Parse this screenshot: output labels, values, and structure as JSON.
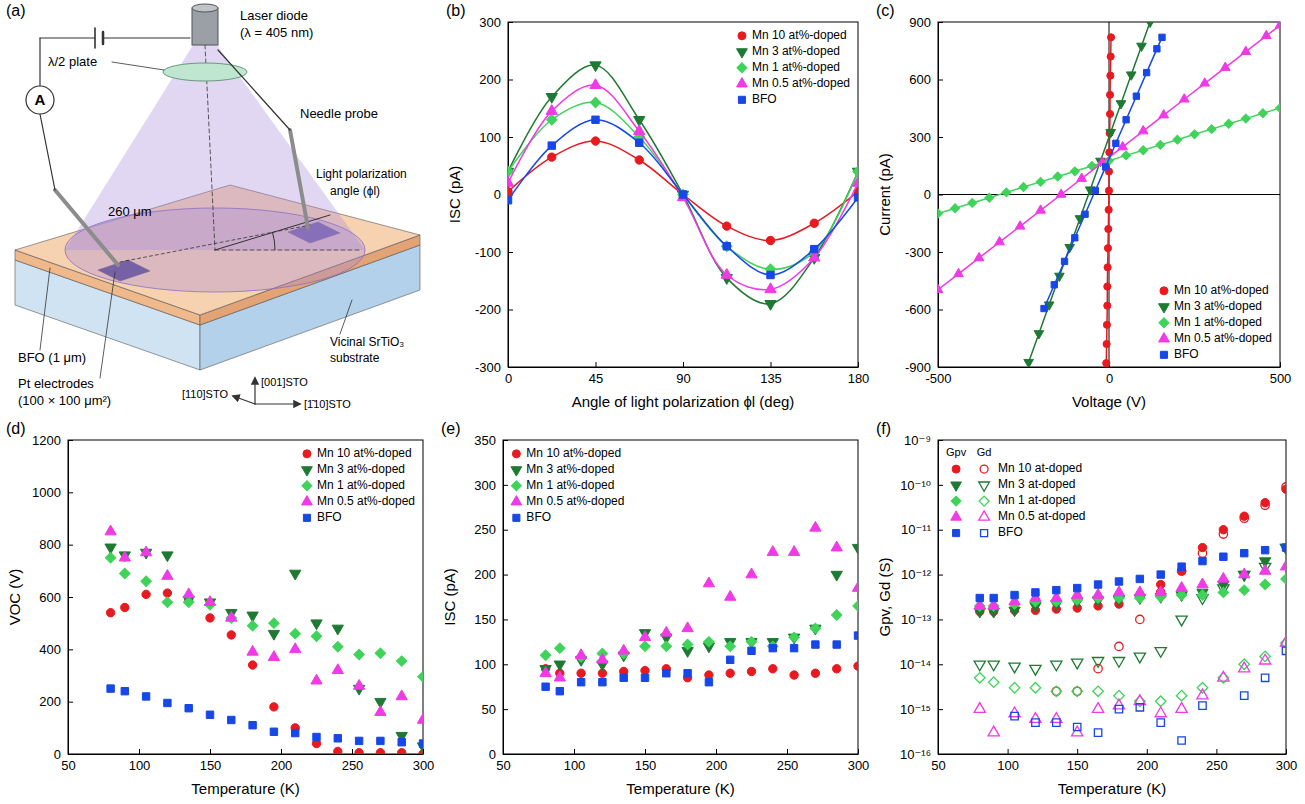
{
  "diagram": {
    "panel_label": "(a)",
    "labels": {
      "laser_diode": "Laser diode",
      "wavelength": "(λ = 405 nm)",
      "half_wave_plate": "λ/2 plate",
      "ammeter": "A",
      "needle_probe": "Needle probe",
      "distance": "260 μm",
      "polarization_1": "Light polarization",
      "polarization_2": "angle (ϕl)",
      "bfo": "BFO (1 μm)",
      "electrodes_1": "Pt electrodes",
      "electrodes_2": "(100 × 100 μm²)",
      "substrate_1": "Vicinal SrTiO₃",
      "substrate_2": "substrate",
      "axis_110": "[110]STO",
      "axis_001": "[001]STO",
      "axis_1bar10": "[1̄10]STO"
    }
  },
  "chart_data": [
    {
      "type": "line",
      "panel_label": "(b)",
      "x_label": "Angle of light polarization ϕl (deg)",
      "y_label": "ISC (pA)",
      "x": [
        0,
        22.5,
        45,
        67.5,
        90,
        112.5,
        135,
        157.5,
        180
      ],
      "xlim": [
        0,
        180
      ],
      "xticks": [
        0,
        45,
        90,
        135,
        180
      ],
      "ylim": [
        -300,
        300
      ],
      "yticks": [
        -300,
        -200,
        -100,
        0,
        100,
        200,
        300
      ],
      "legend": "upper right",
      "series": [
        {
          "name": "Mn 10 at%-doped",
          "color": "#e8191f",
          "marker": "circle",
          "line_style": "smooth",
          "values": [
            5,
            65,
            93,
            60,
            0,
            -55,
            -80,
            -50,
            5
          ]
        },
        {
          "name": "Mn 3 at%-doped",
          "color": "#1e7a32",
          "marker": "triangle-down",
          "line_style": "smooth",
          "values": [
            40,
            170,
            225,
            130,
            0,
            -145,
            -190,
            -110,
            40
          ]
        },
        {
          "name": "Mn 1 at%-doped",
          "color": "#3fd35a",
          "marker": "diamond",
          "line_style": "smooth",
          "values": [
            40,
            130,
            160,
            100,
            0,
            -90,
            -130,
            -100,
            40
          ]
        },
        {
          "name": "Mn 0.5 at%-doped",
          "color": "#f03ae6",
          "marker": "triangle-up",
          "line_style": "smooth",
          "values": [
            20,
            145,
            190,
            110,
            -5,
            -140,
            -165,
            -110,
            20
          ]
        },
        {
          "name": "BFO",
          "color": "#1747e6",
          "marker": "square",
          "line_style": "smooth",
          "values": [
            -10,
            85,
            130,
            90,
            0,
            -90,
            -140,
            -95,
            -5
          ]
        }
      ]
    },
    {
      "type": "line",
      "panel_label": "(c)",
      "x_label": "Voltage (V)",
      "y_label": "Current (pA)",
      "xlim": [
        -500,
        500
      ],
      "xticks": [
        -500,
        0,
        500
      ],
      "ylim": [
        -900,
        900
      ],
      "yticks": [
        -900,
        -600,
        -300,
        0,
        300,
        600,
        900
      ],
      "legend": "lower right",
      "series": [
        {
          "name": "Mn 10 at%-doped",
          "color": "#e8191f",
          "marker": "circle",
          "line_style": "solid",
          "x": [
            -8,
            -7,
            -6,
            -5,
            -5,
            -4,
            -3,
            -2,
            -1,
            0,
            0,
            1,
            2,
            3,
            3,
            4,
            5,
            6
          ],
          "values": [
            -880,
            -780,
            -680,
            -580,
            -480,
            -380,
            -280,
            -180,
            -80,
            20,
            120,
            220,
            320,
            420,
            520,
            620,
            720,
            820
          ]
        },
        {
          "name": "Mn 3 at%-doped",
          "color": "#1e7a32",
          "marker": "triangle-down",
          "line_style": "solid",
          "x": [
            -235,
            -205,
            -175,
            -145,
            -115,
            -85,
            -55,
            -25,
            5,
            35,
            65,
            95,
            120
          ],
          "values": [
            -875,
            -725,
            -575,
            -425,
            -275,
            -125,
            25,
            175,
            325,
            475,
            625,
            775,
            900
          ]
        },
        {
          "name": "Mn 1 at%-doped",
          "color": "#3fd35a",
          "marker": "diamond",
          "line_style": "solid",
          "x": [
            -500,
            -450,
            -400,
            -350,
            -300,
            -250,
            -200,
            -150,
            -100,
            -50,
            0,
            50,
            100,
            150,
            200,
            250,
            300,
            350,
            400,
            450,
            500
          ],
          "values": [
            -99,
            -72,
            -44,
            -17,
            11,
            39,
            66,
            94,
            121,
            149,
            176,
            204,
            231,
            259,
            286,
            314,
            341,
            369,
            396,
            424,
            451
          ]
        },
        {
          "name": "Mn 0.5 at%-doped",
          "color": "#f03ae6",
          "marker": "triangle-up",
          "line_style": "solid",
          "x": [
            -500,
            -440,
            -380,
            -320,
            -260,
            -200,
            -140,
            -80,
            -20,
            40,
            100,
            160,
            220,
            280,
            340,
            400,
            460,
            500
          ],
          "values": [
            -497,
            -414,
            -331,
            -248,
            -166,
            -83,
            0,
            83,
            166,
            248,
            331,
            414,
            497,
            580,
            662,
            745,
            828,
            883
          ]
        },
        {
          "name": "BFO",
          "color": "#1747e6",
          "marker": "square",
          "line_style": "solid",
          "x": [
            -190,
            -160,
            -130,
            -100,
            -70,
            -40,
            -10,
            20,
            50,
            80,
            110,
            140,
            155
          ],
          "values": [
            -595,
            -471,
            -349,
            -226,
            -103,
            21,
            144,
            267,
            390,
            513,
            636,
            760,
            820
          ]
        }
      ]
    },
    {
      "type": "scatter",
      "panel_label": "(d)",
      "x_label": "Temperature (K)",
      "y_label": "VOC (V)",
      "x": [
        80,
        90,
        105,
        120,
        135,
        150,
        165,
        180,
        195,
        210,
        225,
        240,
        255,
        270,
        285,
        300
      ],
      "xlim": [
        50,
        300
      ],
      "xticks": [
        50,
        100,
        150,
        200,
        250,
        300
      ],
      "ylim": [
        0,
        1200
      ],
      "yticks": [
        0,
        200,
        400,
        600,
        800,
        1000,
        1200
      ],
      "legend": "upper right",
      "series": [
        {
          "name": "Mn 10 at%-doped",
          "color": "#e8191f",
          "marker": "circle",
          "values": [
            540,
            560,
            610,
            615,
            590,
            520,
            455,
            340,
            180,
            100,
            40,
            10,
            5,
            5,
            5,
            0
          ]
        },
        {
          "name": "Mn 3 at%-doped",
          "color": "#1e7a32",
          "marker": "triangle-down",
          "values": [
            790,
            760,
            770,
            760,
            590,
            580,
            540,
            530,
            460,
            690,
            500,
            480,
            250,
            200,
            70,
            30
          ]
        },
        {
          "name": "Mn 1 at%-doped",
          "color": "#3fd35a",
          "marker": "diamond",
          "values": [
            750,
            690,
            660,
            580,
            580,
            570,
            520,
            490,
            500,
            460,
            450,
            410,
            380,
            385,
            355,
            295
          ]
        },
        {
          "name": "Mn 0.5 at%-doped",
          "color": "#f03ae6",
          "marker": "triangle-up",
          "values": [
            850,
            750,
            770,
            680,
            610,
            580,
            520,
            390,
            370,
            400,
            280,
            320,
            260,
            160,
            220,
            130
          ]
        },
        {
          "name": "BFO",
          "color": "#1747e6",
          "marker": "square",
          "values": [
            250,
            240,
            220,
            195,
            175,
            150,
            130,
            110,
            85,
            80,
            65,
            60,
            50,
            50,
            45,
            40
          ]
        }
      ]
    },
    {
      "type": "scatter",
      "panel_label": "(e)",
      "x_label": "Temperature (K)",
      "y_label": "ISC (pA)",
      "x": [
        80,
        90,
        105,
        120,
        135,
        150,
        165,
        180,
        195,
        210,
        225,
        240,
        255,
        270,
        285,
        300
      ],
      "xlim": [
        50,
        300
      ],
      "xticks": [
        50,
        100,
        150,
        200,
        250,
        300
      ],
      "ylim": [
        0,
        350
      ],
      "yticks": [
        0,
        50,
        100,
        150,
        200,
        250,
        300,
        350
      ],
      "legend": "upper left",
      "series": [
        {
          "name": "Mn 10 at%-doped",
          "color": "#e8191f",
          "marker": "circle",
          "values": [
            95,
            90,
            90,
            90,
            92,
            93,
            95,
            85,
            88,
            90,
            92,
            95,
            88,
            90,
            95,
            98
          ]
        },
        {
          "name": "Mn 3 at%-doped",
          "color": "#1e7a32",
          "marker": "triangle-down",
          "values": [
            95,
            100,
            105,
            100,
            110,
            135,
            130,
            115,
            120,
            125,
            125,
            125,
            130,
            140,
            200,
            230
          ]
        },
        {
          "name": "Mn 1 at%-doped",
          "color": "#3fd35a",
          "marker": "diamond",
          "values": [
            110,
            118,
            108,
            112,
            112,
            120,
            120,
            122,
            125,
            120,
            125,
            120,
            130,
            140,
            155,
            165
          ]
        },
        {
          "name": "Mn 0.5 at%-doped",
          "color": "#f03ae6",
          "marker": "triangle-up",
          "values": [
            90,
            85,
            110,
            105,
            115,
            130,
            135,
            140,
            190,
            175,
            200,
            225,
            225,
            252,
            230,
            185
          ]
        },
        {
          "name": "BFO",
          "color": "#1747e6",
          "marker": "square",
          "values": [
            75,
            70,
            80,
            80,
            85,
            85,
            90,
            90,
            80,
            105,
            115,
            118,
            118,
            122,
            122,
            132
          ]
        }
      ]
    },
    {
      "type": "scatter",
      "panel_label": "(f)",
      "x_label": "Temperature (K)",
      "y_label": "Gpv, Gd (S)",
      "x": [
        80,
        90,
        105,
        120,
        135,
        150,
        165,
        180,
        195,
        210,
        225,
        240,
        255,
        270,
        285,
        300
      ],
      "xlim": [
        50,
        300
      ],
      "xticks": [
        50,
        100,
        150,
        200,
        250,
        300
      ],
      "log": "y",
      "ylim": [
        1e-16,
        1e-09
      ],
      "yticks": [
        {
          "value": 1e-16,
          "label": "10⁻¹⁶"
        },
        {
          "value": 1e-15,
          "label": "10⁻¹⁵"
        },
        {
          "value": 1e-14,
          "label": "10⁻¹⁴"
        },
        {
          "value": 1e-13,
          "label": "10⁻¹³"
        },
        {
          "value": 1e-12,
          "label": "10⁻¹²"
        },
        {
          "value": 1e-11,
          "label": "10⁻¹¹"
        },
        {
          "value": 1e-10,
          "label": "10⁻¹⁰"
        },
        {
          "value": 1e-09,
          "label": "10⁻⁹"
        }
      ],
      "legend": "upper left",
      "legend_columns": [
        "Gpv",
        "Gd"
      ],
      "series": [
        {
          "name": "Mn 10 at-doped",
          "color": "#e8191f",
          "marker": "circle",
          "values": [
            1.5e-13,
            1.5e-13,
            1.6e-13,
            1.6e-13,
            1.7e-13,
            1.8e-13,
            2e-13,
            2.2e-13,
            3.5e-13,
            6e-13,
            1.2e-12,
            4e-12,
            1e-11,
            2e-11,
            4e-11,
            8e-11
          ],
          "gd_values": [
            null,
            null,
            null,
            null,
            2.5e-15,
            2.5e-15,
            8e-15,
            2.5e-14,
            1e-13,
            4e-13,
            1.2e-12,
            3e-12,
            8e-12,
            1.8e-11,
            3.5e-11,
            9e-11
          ]
        },
        {
          "name": "Mn 3 at-doped",
          "color": "#1e7a32",
          "marker": "triangle-down",
          "values": [
            1.5e-13,
            1.5e-13,
            1.6e-13,
            2e-13,
            2.2e-13,
            2.5e-13,
            2.7e-13,
            2.8e-13,
            3e-13,
            3.2e-13,
            3.5e-13,
            4e-13,
            6e-13,
            1e-12,
            2e-12,
            4e-12
          ],
          "gd_values": [
            1e-14,
            1e-14,
            9e-15,
            8e-15,
            1e-14,
            1.1e-14,
            1.2e-14,
            1.2e-14,
            1.5e-14,
            2e-14,
            1e-13,
            3e-13,
            5e-13,
            1e-12,
            1.5e-12,
            4e-12
          ]
        },
        {
          "name": "Mn 1 at-doped",
          "color": "#3fd35a",
          "marker": "diamond",
          "values": [
            2e-13,
            2e-13,
            2.2e-13,
            2.5e-13,
            2.5e-13,
            2.7e-13,
            3e-13,
            3e-13,
            3e-13,
            3.2e-13,
            3.5e-13,
            3.5e-13,
            4e-13,
            4.5e-13,
            6e-13,
            8e-13
          ],
          "gd_values": [
            5e-15,
            4e-15,
            3e-15,
            3e-15,
            2.5e-15,
            2.5e-15,
            2.5e-15,
            2e-15,
            1.5e-15,
            1.5e-15,
            2e-15,
            3e-15,
            5e-15,
            1e-14,
            1.5e-14,
            3e-14
          ]
        },
        {
          "name": "Mn 0.5 at-doped",
          "color": "#f03ae6",
          "marker": "triangle-up",
          "values": [
            2e-13,
            2e-13,
            2.5e-13,
            3e-13,
            3e-13,
            3.5e-13,
            3.5e-13,
            4e-13,
            4e-13,
            4e-13,
            5e-13,
            6e-13,
            8e-13,
            1e-12,
            1.2e-12,
            1.5e-12
          ],
          "gd_values": [
            1e-15,
            3e-16,
            8e-16,
            6e-16,
            6e-16,
            3e-16,
            1e-15,
            1.2e-15,
            1.5e-15,
            8e-16,
            1e-15,
            2e-15,
            5e-15,
            8e-15,
            1.2e-14,
            3e-14
          ]
        },
        {
          "name": "BFO",
          "color": "#1747e6",
          "marker": "square",
          "values": [
            3e-13,
            3e-13,
            3.5e-13,
            4e-13,
            4.5e-13,
            5e-13,
            6e-13,
            7e-13,
            8e-13,
            1e-12,
            1.5e-12,
            2e-12,
            2.5e-12,
            3e-12,
            3.5e-12,
            4e-12
          ],
          "gd_values": [
            null,
            null,
            7e-16,
            5e-16,
            5e-16,
            4e-16,
            3e-16,
            1e-15,
            1.1e-15,
            5e-16,
            2e-16,
            1.2e-15,
            null,
            2e-15,
            5e-15,
            2e-14
          ]
        }
      ]
    }
  ]
}
